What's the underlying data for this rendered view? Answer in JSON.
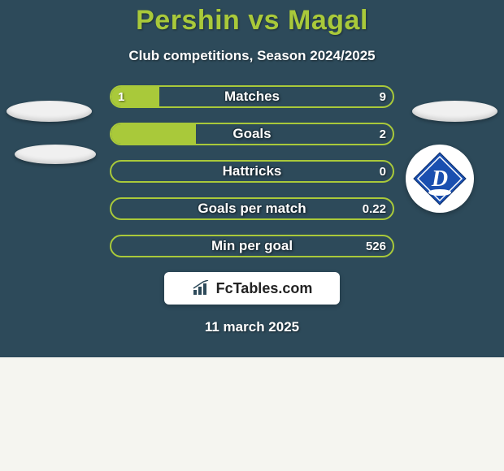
{
  "background_color": "#2d4a5a",
  "accent_color": "#a9c93a",
  "text_color": "#ffffff",
  "title": "Pershin vs Magal",
  "title_style": {
    "fontsize": 34,
    "color": "#a9c93a",
    "weight": 800
  },
  "subtitle": "Club competitions, Season 2024/2025",
  "subtitle_style": {
    "fontsize": 17,
    "color": "#ffffff",
    "weight": 700
  },
  "bars": {
    "track_width": 350,
    "track_height": 28,
    "border_color": "#a9c93a",
    "border_width": 2,
    "border_radius": 14,
    "fill_color": "#a9c93a",
    "label_fontsize": 17,
    "value_fontsize": 15,
    "rows": [
      {
        "label": "Matches",
        "left": "1",
        "right": "9",
        "left_pct": 17
      },
      {
        "label": "Goals",
        "left": "",
        "right": "2",
        "left_pct": 30
      },
      {
        "label": "Hattricks",
        "left": "",
        "right": "0",
        "left_pct": 0
      },
      {
        "label": "Goals per match",
        "left": "",
        "right": "0.22",
        "left_pct": 0
      },
      {
        "label": "Min per goal",
        "left": "",
        "right": "526",
        "left_pct": 0
      }
    ]
  },
  "badges": {
    "placeholder_color": "#f0f0f0",
    "ellipse_w": 105,
    "ellipse_h": 26
  },
  "club_logo": {
    "shape": "diamond",
    "primary": "#1a4fb0",
    "secondary": "#ffffff",
    "letter": "D",
    "circle_bg": "#ffffff",
    "circle_diameter": 84
  },
  "footer": {
    "brand": "FcTables.com",
    "brand_fontsize": 18,
    "logo_bg": "#ffffff",
    "date": "11 march 2025",
    "date_fontsize": 17
  }
}
